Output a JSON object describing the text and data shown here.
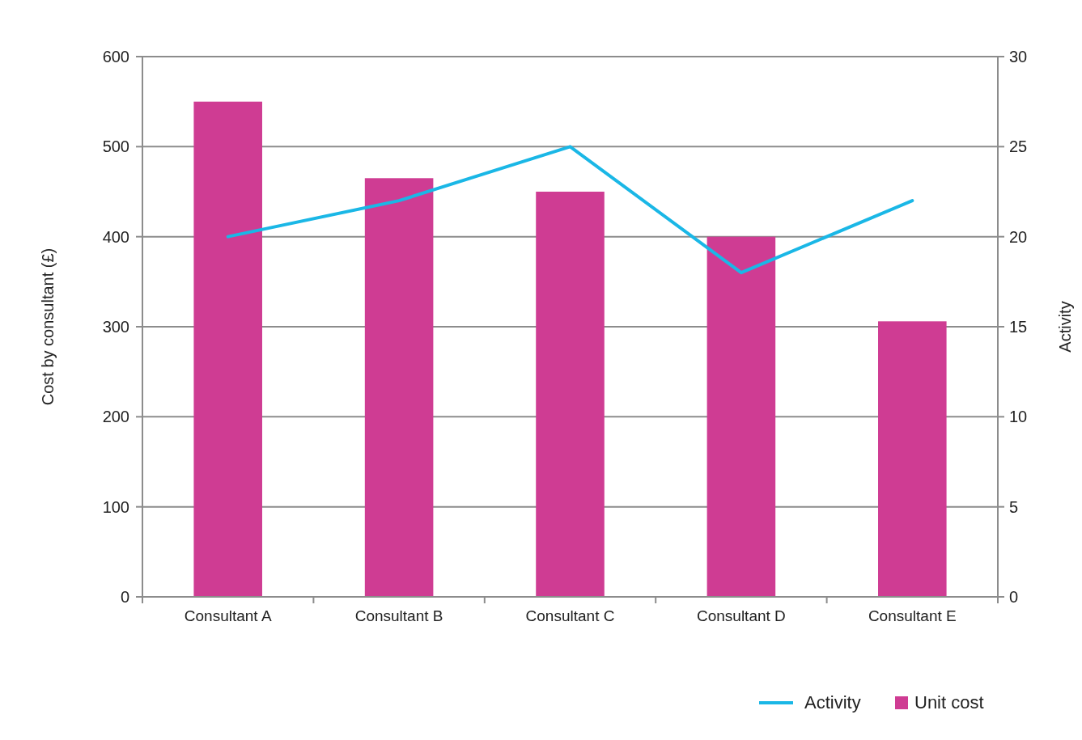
{
  "chart_data": {
    "type": "bar",
    "ylabel": "Cost by consultant (£)",
    "y2label": "Activity",
    "categories": [
      "Consultant A",
      "Consultant B",
      "Consultant C",
      "Consultant D",
      "Consultant E"
    ],
    "series": [
      {
        "name": "Unit cost",
        "color": "#cf3c93",
        "values": [
          550,
          465,
          450,
          400,
          306
        ]
      },
      {
        "name": "Activity",
        "type": "line",
        "axis": "y2",
        "color": "#1ab7e6",
        "values": [
          20,
          22,
          25,
          18,
          22
        ]
      }
    ],
    "ylim": [
      0,
      600
    ],
    "yticks": [
      0,
      100,
      200,
      300,
      400,
      500,
      600
    ],
    "y2lim": [
      0,
      30
    ],
    "y2ticks": [
      0,
      5,
      10,
      15,
      20,
      25,
      30
    ],
    "grid": "y",
    "legend": "bottom right",
    "marker": "none"
  }
}
